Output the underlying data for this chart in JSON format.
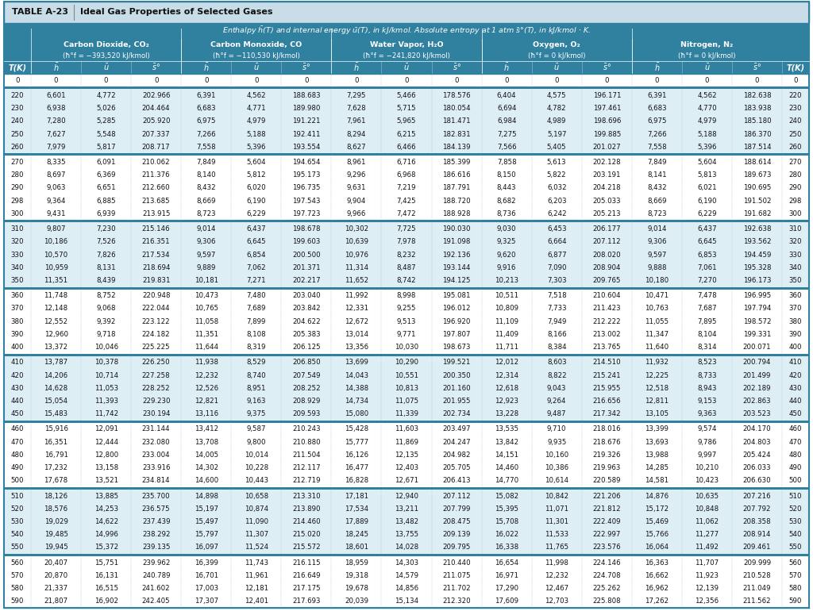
{
  "title_table": "TABLE A-23",
  "title_desc": "Ideal Gas Properties of Selected Gases",
  "gases": [
    {
      "name": "Carbon Dioxide, CO₂",
      "hf": "(ħ°f = −393,520 kJ/kmol)"
    },
    {
      "name": "Carbon Monoxide, CO",
      "hf": "(ħ°f = −110,530 kJ/kmol)"
    },
    {
      "name": "Water Vapor, H₂O",
      "hf": "(ħ°f = −241,820 kJ/kmol)"
    },
    {
      "name": "Oxygen, O₂",
      "hf": "(ħ°f = 0 kJ/kmol)"
    },
    {
      "name": "Nitrogen, N₂",
      "hf": "(ħ°f = 0 kJ/kmol)"
    }
  ],
  "rows": [
    [
      0,
      0,
      0,
      0,
      0,
      0,
      0,
      0,
      0,
      0,
      0,
      0,
      0,
      0,
      0,
      0,
      0
    ],
    [
      220,
      6601,
      4772,
      202.966,
      6391,
      4562,
      188.683,
      7295,
      5466,
      178.576,
      6404,
      4575,
      196.171,
      6391,
      4562,
      182.638,
      220
    ],
    [
      230,
      6938,
      5026,
      204.464,
      6683,
      4771,
      189.98,
      7628,
      5715,
      180.054,
      6694,
      4782,
      197.461,
      6683,
      4770,
      183.938,
      230
    ],
    [
      240,
      7280,
      5285,
      205.92,
      6975,
      4979,
      191.221,
      7961,
      5965,
      181.471,
      6984,
      4989,
      198.696,
      6975,
      4979,
      185.18,
      240
    ],
    [
      250,
      7627,
      5548,
      207.337,
      7266,
      5188,
      192.411,
      8294,
      6215,
      182.831,
      7275,
      5197,
      199.885,
      7266,
      5188,
      186.37,
      250
    ],
    [
      260,
      7979,
      5817,
      208.717,
      7558,
      5396,
      193.554,
      8627,
      6466,
      184.139,
      7566,
      5405,
      201.027,
      7558,
      5396,
      187.514,
      260
    ],
    [
      270,
      8335,
      6091,
      210.062,
      7849,
      5604,
      194.654,
      8961,
      6716,
      185.399,
      7858,
      5613,
      202.128,
      7849,
      5604,
      188.614,
      270
    ],
    [
      280,
      8697,
      6369,
      211.376,
      8140,
      5812,
      195.173,
      9296,
      6968,
      186.616,
      8150,
      5822,
      203.191,
      8141,
      5813,
      189.673,
      280
    ],
    [
      290,
      9063,
      6651,
      212.66,
      8432,
      6020,
      196.735,
      9631,
      7219,
      187.791,
      8443,
      6032,
      204.218,
      8432,
      6021,
      190.695,
      290
    ],
    [
      298,
      9364,
      6885,
      213.685,
      8669,
      6190,
      197.543,
      9904,
      7425,
      188.72,
      8682,
      6203,
      205.033,
      8669,
      6190,
      191.502,
      298
    ],
    [
      300,
      9431,
      6939,
      213.915,
      8723,
      6229,
      197.723,
      9966,
      7472,
      188.928,
      8736,
      6242,
      205.213,
      8723,
      6229,
      191.682,
      300
    ],
    [
      310,
      9807,
      7230,
      215.146,
      9014,
      6437,
      198.678,
      10302,
      7725,
      190.03,
      9030,
      6453,
      206.177,
      9014,
      6437,
      192.638,
      310
    ],
    [
      320,
      10186,
      7526,
      216.351,
      9306,
      6645,
      199.603,
      10639,
      7978,
      191.098,
      9325,
      6664,
      207.112,
      9306,
      6645,
      193.562,
      320
    ],
    [
      330,
      10570,
      7826,
      217.534,
      9597,
      6854,
      200.5,
      10976,
      8232,
      192.136,
      9620,
      6877,
      208.02,
      9597,
      6853,
      194.459,
      330
    ],
    [
      340,
      10959,
      8131,
      218.694,
      9889,
      7062,
      201.371,
      11314,
      8487,
      193.144,
      9916,
      7090,
      208.904,
      9888,
      7061,
      195.328,
      340
    ],
    [
      350,
      11351,
      8439,
      219.831,
      10181,
      7271,
      202.217,
      11652,
      8742,
      194.125,
      10213,
      7303,
      209.765,
      10180,
      7270,
      196.173,
      350
    ],
    [
      360,
      11748,
      8752,
      220.948,
      10473,
      7480,
      203.04,
      11992,
      8998,
      195.081,
      10511,
      7518,
      210.604,
      10471,
      7478,
      196.995,
      360
    ],
    [
      370,
      12148,
      9068,
      222.044,
      10765,
      7689,
      203.842,
      12331,
      9255,
      196.012,
      10809,
      7733,
      211.423,
      10763,
      7687,
      197.794,
      370
    ],
    [
      380,
      12552,
      9392,
      223.122,
      11058,
      7899,
      204.622,
      12672,
      9513,
      196.92,
      11109,
      7949,
      212.222,
      11055,
      7895,
      198.572,
      380
    ],
    [
      390,
      12960,
      9718,
      224.182,
      11351,
      8108,
      205.383,
      13014,
      9771,
      197.807,
      11409,
      8166,
      213.002,
      11347,
      8104,
      199.331,
      390
    ],
    [
      400,
      13372,
      10046,
      225.225,
      11644,
      8319,
      206.125,
      13356,
      10030,
      198.673,
      11711,
      8384,
      213.765,
      11640,
      8314,
      200.071,
      400
    ],
    [
      410,
      13787,
      10378,
      226.25,
      11938,
      8529,
      206.85,
      13699,
      10290,
      199.521,
      12012,
      8603,
      214.51,
      11932,
      8523,
      200.794,
      410
    ],
    [
      420,
      14206,
      10714,
      227.258,
      12232,
      8740,
      207.549,
      14043,
      10551,
      200.35,
      12314,
      8822,
      215.241,
      12225,
      8733,
      201.499,
      420
    ],
    [
      430,
      14628,
      11053,
      228.252,
      12526,
      8951,
      208.252,
      14388,
      10813,
      201.16,
      12618,
      9043,
      215.955,
      12518,
      8943,
      202.189,
      430
    ],
    [
      440,
      15054,
      11393,
      229.23,
      12821,
      9163,
      208.929,
      14734,
      11075,
      201.955,
      12923,
      9264,
      216.656,
      12811,
      9153,
      202.863,
      440
    ],
    [
      450,
      15483,
      11742,
      230.194,
      13116,
      9375,
      209.593,
      15080,
      11339,
      202.734,
      13228,
      9487,
      217.342,
      13105,
      9363,
      203.523,
      450
    ],
    [
      460,
      15916,
      12091,
      231.144,
      13412,
      9587,
      210.243,
      15428,
      11603,
      203.497,
      13535,
      9710,
      218.016,
      13399,
      9574,
      204.17,
      460
    ],
    [
      470,
      16351,
      12444,
      232.08,
      13708,
      9800,
      210.88,
      15777,
      11869,
      204.247,
      13842,
      9935,
      218.676,
      13693,
      9786,
      204.803,
      470
    ],
    [
      480,
      16791,
      12800,
      233.004,
      14005,
      10014,
      211.504,
      16126,
      12135,
      204.982,
      14151,
      10160,
      219.326,
      13988,
      9997,
      205.424,
      480
    ],
    [
      490,
      17232,
      13158,
      233.916,
      14302,
      10228,
      212.117,
      16477,
      12403,
      205.705,
      14460,
      10386,
      219.963,
      14285,
      10210,
      206.033,
      490
    ],
    [
      500,
      17678,
      13521,
      234.814,
      14600,
      10443,
      212.719,
      16828,
      12671,
      206.413,
      14770,
      10614,
      220.589,
      14581,
      10423,
      206.63,
      500
    ],
    [
      510,
      18126,
      13885,
      235.7,
      14898,
      10658,
      213.31,
      17181,
      12940,
      207.112,
      15082,
      10842,
      221.206,
      14876,
      10635,
      207.216,
      510
    ],
    [
      520,
      18576,
      14253,
      236.575,
      15197,
      10874,
      213.89,
      17534,
      13211,
      207.799,
      15395,
      11071,
      221.812,
      15172,
      10848,
      207.792,
      520
    ],
    [
      530,
      19029,
      14622,
      237.439,
      15497,
      11090,
      214.46,
      17889,
      13482,
      208.475,
      15708,
      11301,
      222.409,
      15469,
      11062,
      208.358,
      530
    ],
    [
      540,
      19485,
      14996,
      238.292,
      15797,
      11307,
      215.02,
      18245,
      13755,
      209.139,
      16022,
      11533,
      222.997,
      15766,
      11277,
      208.914,
      540
    ],
    [
      550,
      19945,
      15372,
      239.135,
      16097,
      11524,
      215.572,
      18601,
      14028,
      209.795,
      16338,
      11765,
      223.576,
      16064,
      11492,
      209.461,
      550
    ],
    [
      560,
      20407,
      15751,
      239.962,
      16399,
      11743,
      216.115,
      18959,
      14303,
      210.44,
      16654,
      11998,
      224.146,
      16363,
      11707,
      209.999,
      560
    ],
    [
      570,
      20870,
      16131,
      240.789,
      16701,
      11961,
      216.649,
      19318,
      14579,
      211.075,
      16971,
      12232,
      224.708,
      16662,
      11923,
      210.528,
      570
    ],
    [
      580,
      21337,
      16515,
      241.602,
      17003,
      12181,
      217.175,
      19678,
      14856,
      211.702,
      17290,
      12467,
      225.262,
      16962,
      12139,
      211.049,
      580
    ],
    [
      590,
      21807,
      16902,
      242.405,
      17307,
      12401,
      217.693,
      20039,
      15134,
      212.32,
      17609,
      12703,
      225.808,
      17262,
      12356,
      211.562,
      590
    ]
  ],
  "teal": "#3080a0",
  "teal_dark": "#2a6e8c",
  "title_bg": "#c8dde8",
  "row_white": "#ffffff",
  "row_blue": "#ddeef5",
  "sep_color": "#3080a0",
  "border_color": "#2a6e8c",
  "text_white": "#ffffff",
  "text_black": "#111111",
  "text_dark": "#222222"
}
